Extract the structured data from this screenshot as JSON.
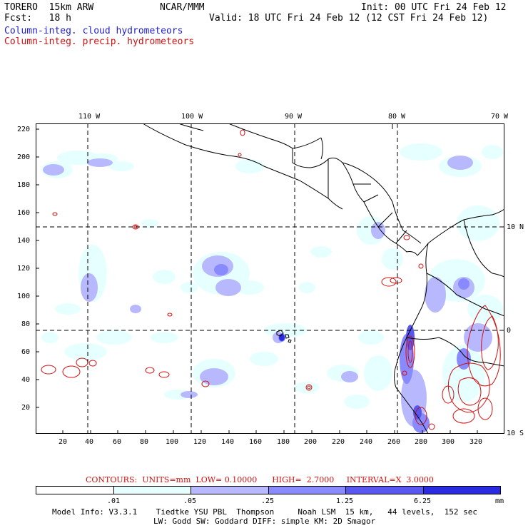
{
  "header": {
    "model": "TORERO  15km ARW",
    "forecast": "Fcst:   18 h",
    "org": "NCAR/MMM",
    "init": "Init: 00 UTC Fri 24 Feb 12",
    "valid": "Valid: 18 UTC Fri 24 Feb 12 (12 CST Fri 24 Feb 12)",
    "field_cloud": "Column-integ. cloud hydrometeors",
    "field_precip": "Column-integ. precip. hydrometeors"
  },
  "colors": {
    "cloud_label": "#2020d0",
    "precip_label": "#d01010",
    "shade_1": "#e6ffff",
    "shade_2": "#b8b8ff",
    "shade_3": "#8a8aff",
    "shade_4": "#5858f0",
    "shade_5": "#2a2ae0"
  },
  "map": {
    "lon_labels": [
      "110 W",
      "100 W",
      "90 W",
      "80 W",
      "70 W"
    ],
    "lat_labels": [
      "10 N",
      "0",
      "10 S"
    ],
    "y_ticks": [
      "220",
      "200",
      "180",
      "160",
      "140",
      "120",
      "100",
      "80",
      "60",
      "40",
      "20"
    ],
    "x_ticks": [
      "20",
      "40",
      "60",
      "80",
      "100",
      "120",
      "140",
      "160",
      "180",
      "200",
      "220",
      "240",
      "260",
      "280",
      "300",
      "320"
    ]
  },
  "contours": {
    "label": "CONTOURS:  UNITS=mm  LOW= 0.10000      HIGH=  2.7000     INTERVAL=X  3.0000"
  },
  "legend": {
    "labels": [
      ".01",
      ".05",
      ".25",
      "1.25",
      "6.25"
    ],
    "unit": "mm"
  },
  "footer": {
    "line1": "Model Info: V3.3.1    Tiedtke YSU PBL  Thompson     Noah LSM  15 km,   44 levels,  152 sec",
    "line2": "LW: Godd SW: Goddard DIFF: simple KM: 2D Smagor"
  }
}
